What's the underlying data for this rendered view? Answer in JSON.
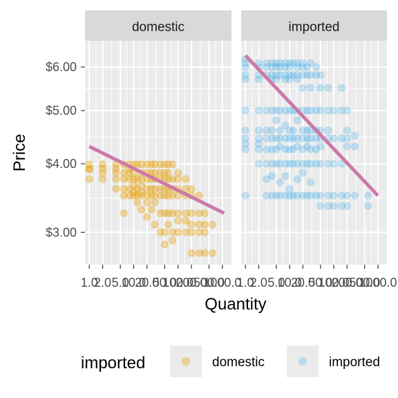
{
  "chart_data": {
    "type": "scatter",
    "facet_by": "imported",
    "panels": [
      "domestic",
      "imported"
    ],
    "xlabel": "Quantity",
    "ylabel": "Price",
    "x_scale": "log",
    "y_scale": "log",
    "x_ticks": [
      1,
      2,
      5,
      10,
      20,
      50,
      100,
      200,
      500,
      1000
    ],
    "x_tick_labels": [
      "1.0",
      "2.0",
      "5.0",
      "10.0",
      "20.0",
      "50.0",
      "100.0",
      "200.0",
      "500.0",
      "1000.0"
    ],
    "x_range": [
      0.8,
      1600
    ],
    "y_ticks": [
      3,
      4,
      5,
      6
    ],
    "y_tick_labels": [
      "$3.00",
      "$4.00",
      "$5.00",
      "$6.00"
    ],
    "y_range": [
      2.62,
      6.7
    ],
    "legend": {
      "title": "imported",
      "position": "bottom",
      "entries": [
        {
          "label": "domestic",
          "color": "#E69F00"
        },
        {
          "label": "imported",
          "color": "#56B4E9"
        }
      ]
    },
    "colors": {
      "domestic": "#E69F00",
      "imported": "#56B4E9",
      "trend": "#CC79A7",
      "panel_bg": "#EBEBEB",
      "strip_bg": "#D9D9D9",
      "grid": "#FFFFFF"
    },
    "series": [
      {
        "name": "domestic",
        "panel": "domestic",
        "color": "#E69F00",
        "alpha": 0.35,
        "points": [
          [
            1,
            3.9
          ],
          [
            1,
            3.99
          ],
          [
            1,
            3.75
          ],
          [
            1,
            3.92
          ],
          [
            2,
            3.99
          ],
          [
            2,
            3.92
          ],
          [
            2,
            3.75
          ],
          [
            2,
            3.85
          ],
          [
            4,
            3.99
          ],
          [
            4,
            3.75
          ],
          [
            4,
            3.85
          ],
          [
            4,
            3.6
          ],
          [
            4,
            3.92
          ],
          [
            6,
            3.99
          ],
          [
            6,
            3.85
          ],
          [
            6,
            3.75
          ],
          [
            6,
            3.6
          ],
          [
            6,
            3.5
          ],
          [
            6,
            3.25
          ],
          [
            8,
            3.99
          ],
          [
            8,
            3.85
          ],
          [
            8,
            3.75
          ],
          [
            8,
            3.6
          ],
          [
            8,
            3.5
          ],
          [
            8,
            3.92
          ],
          [
            10,
            3.99
          ],
          [
            10,
            3.85
          ],
          [
            10,
            3.75
          ],
          [
            10,
            3.65
          ],
          [
            10,
            3.55
          ],
          [
            10,
            3.5
          ],
          [
            12,
            3.99
          ],
          [
            12,
            3.75
          ],
          [
            12,
            3.6
          ],
          [
            12,
            3.5
          ],
          [
            12,
            3.4
          ],
          [
            15,
            3.99
          ],
          [
            15,
            3.85
          ],
          [
            15,
            3.75
          ],
          [
            15,
            3.65
          ],
          [
            15,
            3.55
          ],
          [
            15,
            3.5
          ],
          [
            15,
            3.3
          ],
          [
            20,
            3.99
          ],
          [
            20,
            3.85
          ],
          [
            20,
            3.75
          ],
          [
            20,
            3.6
          ],
          [
            20,
            3.5
          ],
          [
            20,
            3.4
          ],
          [
            20,
            3.2
          ],
          [
            25,
            3.99
          ],
          [
            25,
            3.85
          ],
          [
            25,
            3.75
          ],
          [
            25,
            3.6
          ],
          [
            25,
            3.5
          ],
          [
            25,
            3.3
          ],
          [
            30,
            3.99
          ],
          [
            30,
            3.85
          ],
          [
            30,
            3.75
          ],
          [
            30,
            3.6
          ],
          [
            30,
            3.5
          ],
          [
            30,
            3.4
          ],
          [
            30,
            3.1
          ],
          [
            40,
            3.99
          ],
          [
            40,
            3.85
          ],
          [
            40,
            3.75
          ],
          [
            40,
            3.6
          ],
          [
            40,
            3.5
          ],
          [
            40,
            3.25
          ],
          [
            40,
            3.0
          ],
          [
            50,
            3.99
          ],
          [
            50,
            3.85
          ],
          [
            50,
            3.75
          ],
          [
            50,
            3.6
          ],
          [
            50,
            3.5
          ],
          [
            50,
            3.25
          ],
          [
            50,
            3.0
          ],
          [
            50,
            2.85
          ],
          [
            60,
            3.99
          ],
          [
            60,
            3.85
          ],
          [
            60,
            3.75
          ],
          [
            60,
            3.6
          ],
          [
            60,
            3.5
          ],
          [
            60,
            3.25
          ],
          [
            60,
            3.1
          ],
          [
            75,
            3.99
          ],
          [
            75,
            3.75
          ],
          [
            75,
            3.6
          ],
          [
            75,
            3.5
          ],
          [
            75,
            3.25
          ],
          [
            75,
            3.0
          ],
          [
            75,
            2.9
          ],
          [
            100,
            3.85
          ],
          [
            100,
            3.75
          ],
          [
            100,
            3.6
          ],
          [
            100,
            3.5
          ],
          [
            100,
            3.25
          ],
          [
            100,
            3.15
          ],
          [
            100,
            3.0
          ],
          [
            150,
            3.75
          ],
          [
            150,
            3.6
          ],
          [
            150,
            3.5
          ],
          [
            150,
            3.25
          ],
          [
            150,
            3.15
          ],
          [
            150,
            3.0
          ],
          [
            200,
            3.6
          ],
          [
            200,
            3.5
          ],
          [
            200,
            3.25
          ],
          [
            200,
            3.1
          ],
          [
            200,
            3.0
          ],
          [
            200,
            2.75
          ],
          [
            300,
            3.5
          ],
          [
            300,
            3.25
          ],
          [
            300,
            3.1
          ],
          [
            300,
            3.0
          ],
          [
            300,
            2.75
          ],
          [
            400,
            3.25
          ],
          [
            400,
            3.1
          ],
          [
            400,
            3.0
          ],
          [
            400,
            2.75
          ],
          [
            600,
            3.1
          ],
          [
            600,
            2.75
          ]
        ],
        "trend": [
          [
            1,
            4.3
          ],
          [
            1100,
            3.25
          ]
        ]
      },
      {
        "name": "imported",
        "panel": "imported",
        "color": "#56B4E9",
        "alpha": 0.3,
        "points": [
          [
            1,
            6.2
          ],
          [
            1,
            6.1
          ],
          [
            1,
            6.0
          ],
          [
            1,
            5.8
          ],
          [
            1,
            5.7
          ],
          [
            1,
            5.0
          ],
          [
            1,
            4.6
          ],
          [
            1,
            4.45
          ],
          [
            1,
            4.35
          ],
          [
            1,
            4.25
          ],
          [
            1,
            3.5
          ],
          [
            2,
            6.1
          ],
          [
            2,
            6.0
          ],
          [
            2,
            5.8
          ],
          [
            2,
            5.7
          ],
          [
            2,
            5.0
          ],
          [
            2,
            4.6
          ],
          [
            2,
            4.45
          ],
          [
            2,
            4.35
          ],
          [
            2,
            4.25
          ],
          [
            2,
            4.0
          ],
          [
            3,
            6.1
          ],
          [
            3,
            6.0
          ],
          [
            3,
            5.8
          ],
          [
            3,
            5.0
          ],
          [
            3,
            4.6
          ],
          [
            3,
            4.45
          ],
          [
            3,
            4.25
          ],
          [
            3,
            4.0
          ],
          [
            3,
            3.75
          ],
          [
            3,
            3.5
          ],
          [
            4,
            6.1
          ],
          [
            4,
            6.0
          ],
          [
            4,
            5.8
          ],
          [
            4,
            5.7
          ],
          [
            4,
            5.0
          ],
          [
            4,
            4.6
          ],
          [
            4,
            4.45
          ],
          [
            4,
            4.25
          ],
          [
            4,
            4.0
          ],
          [
            4,
            3.8
          ],
          [
            4,
            3.5
          ],
          [
            5,
            6.1
          ],
          [
            5,
            6.0
          ],
          [
            5,
            5.8
          ],
          [
            5,
            5.7
          ],
          [
            5,
            5.0
          ],
          [
            5,
            4.8
          ],
          [
            5,
            4.45
          ],
          [
            5,
            4.25
          ],
          [
            5,
            4.0
          ],
          [
            5,
            3.5
          ],
          [
            6,
            6.1
          ],
          [
            6,
            6.0
          ],
          [
            6,
            5.8
          ],
          [
            6,
            5.0
          ],
          [
            6,
            4.6
          ],
          [
            6,
            4.45
          ],
          [
            6,
            4.3
          ],
          [
            6,
            4.0
          ],
          [
            6,
            3.7
          ],
          [
            6,
            3.5
          ],
          [
            8,
            6.1
          ],
          [
            8,
            6.0
          ],
          [
            8,
            5.8
          ],
          [
            8,
            5.7
          ],
          [
            8,
            5.0
          ],
          [
            8,
            4.7
          ],
          [
            8,
            4.45
          ],
          [
            8,
            4.25
          ],
          [
            8,
            4.0
          ],
          [
            8,
            3.8
          ],
          [
            8,
            3.5
          ],
          [
            10,
            6.1
          ],
          [
            10,
            6.0
          ],
          [
            10,
            5.8
          ],
          [
            10,
            5.7
          ],
          [
            10,
            5.0
          ],
          [
            10,
            4.6
          ],
          [
            10,
            4.45
          ],
          [
            10,
            4.25
          ],
          [
            10,
            4.0
          ],
          [
            10,
            3.6
          ],
          [
            10,
            3.5
          ],
          [
            12,
            6.1
          ],
          [
            12,
            5.8
          ],
          [
            12,
            5.0
          ],
          [
            12,
            4.6
          ],
          [
            12,
            4.45
          ],
          [
            12,
            4.25
          ],
          [
            12,
            4.0
          ],
          [
            12,
            3.5
          ],
          [
            15,
            6.1
          ],
          [
            15,
            6.0
          ],
          [
            15,
            5.8
          ],
          [
            15,
            5.7
          ],
          [
            15,
            5.0
          ],
          [
            15,
            4.8
          ],
          [
            15,
            4.45
          ],
          [
            15,
            4.3
          ],
          [
            15,
            4.0
          ],
          [
            15,
            3.75
          ],
          [
            15,
            3.5
          ],
          [
            20,
            6.1
          ],
          [
            20,
            6.0
          ],
          [
            20,
            5.8
          ],
          [
            20,
            5.5
          ],
          [
            20,
            5.0
          ],
          [
            20,
            4.6
          ],
          [
            20,
            4.45
          ],
          [
            20,
            4.25
          ],
          [
            20,
            4.0
          ],
          [
            20,
            3.85
          ],
          [
            20,
            3.5
          ],
          [
            25,
            6.0
          ],
          [
            25,
            5.8
          ],
          [
            25,
            5.0
          ],
          [
            25,
            4.6
          ],
          [
            25,
            4.45
          ],
          [
            25,
            4.3
          ],
          [
            25,
            4.0
          ],
          [
            25,
            3.5
          ],
          [
            30,
            6.1
          ],
          [
            30,
            5.8
          ],
          [
            30,
            5.5
          ],
          [
            30,
            5.0
          ],
          [
            30,
            4.6
          ],
          [
            30,
            4.45
          ],
          [
            30,
            4.25
          ],
          [
            30,
            4.0
          ],
          [
            30,
            3.7
          ],
          [
            30,
            3.5
          ],
          [
            40,
            6.0
          ],
          [
            40,
            5.8
          ],
          [
            40,
            5.0
          ],
          [
            40,
            4.6
          ],
          [
            40,
            4.45
          ],
          [
            40,
            4.25
          ],
          [
            40,
            4.0
          ],
          [
            40,
            3.5
          ],
          [
            50,
            5.8
          ],
          [
            50,
            5.5
          ],
          [
            50,
            5.0
          ],
          [
            50,
            4.6
          ],
          [
            50,
            4.45
          ],
          [
            50,
            4.3
          ],
          [
            50,
            4.0
          ],
          [
            50,
            3.5
          ],
          [
            50,
            3.35
          ],
          [
            75,
            5.5
          ],
          [
            75,
            5.0
          ],
          [
            75,
            4.6
          ],
          [
            75,
            4.45
          ],
          [
            75,
            4.0
          ],
          [
            75,
            3.5
          ],
          [
            75,
            3.35
          ],
          [
            100,
            5.0
          ],
          [
            100,
            4.45
          ],
          [
            100,
            4.0
          ],
          [
            100,
            3.5
          ],
          [
            100,
            3.35
          ],
          [
            150,
            5.5
          ],
          [
            150,
            5.0
          ],
          [
            150,
            4.45
          ],
          [
            150,
            4.0
          ],
          [
            150,
            3.5
          ],
          [
            150,
            3.35
          ],
          [
            200,
            5.0
          ],
          [
            200,
            4.6
          ],
          [
            200,
            4.45
          ],
          [
            200,
            4.3
          ],
          [
            200,
            3.5
          ],
          [
            200,
            3.35
          ],
          [
            300,
            4.5
          ],
          [
            300,
            4.3
          ],
          [
            300,
            3.5
          ],
          [
            600,
            3.5
          ],
          [
            600,
            3.35
          ]
        ],
        "trend": [
          [
            1,
            6.3
          ],
          [
            1000,
            3.5
          ]
        ]
      }
    ]
  }
}
